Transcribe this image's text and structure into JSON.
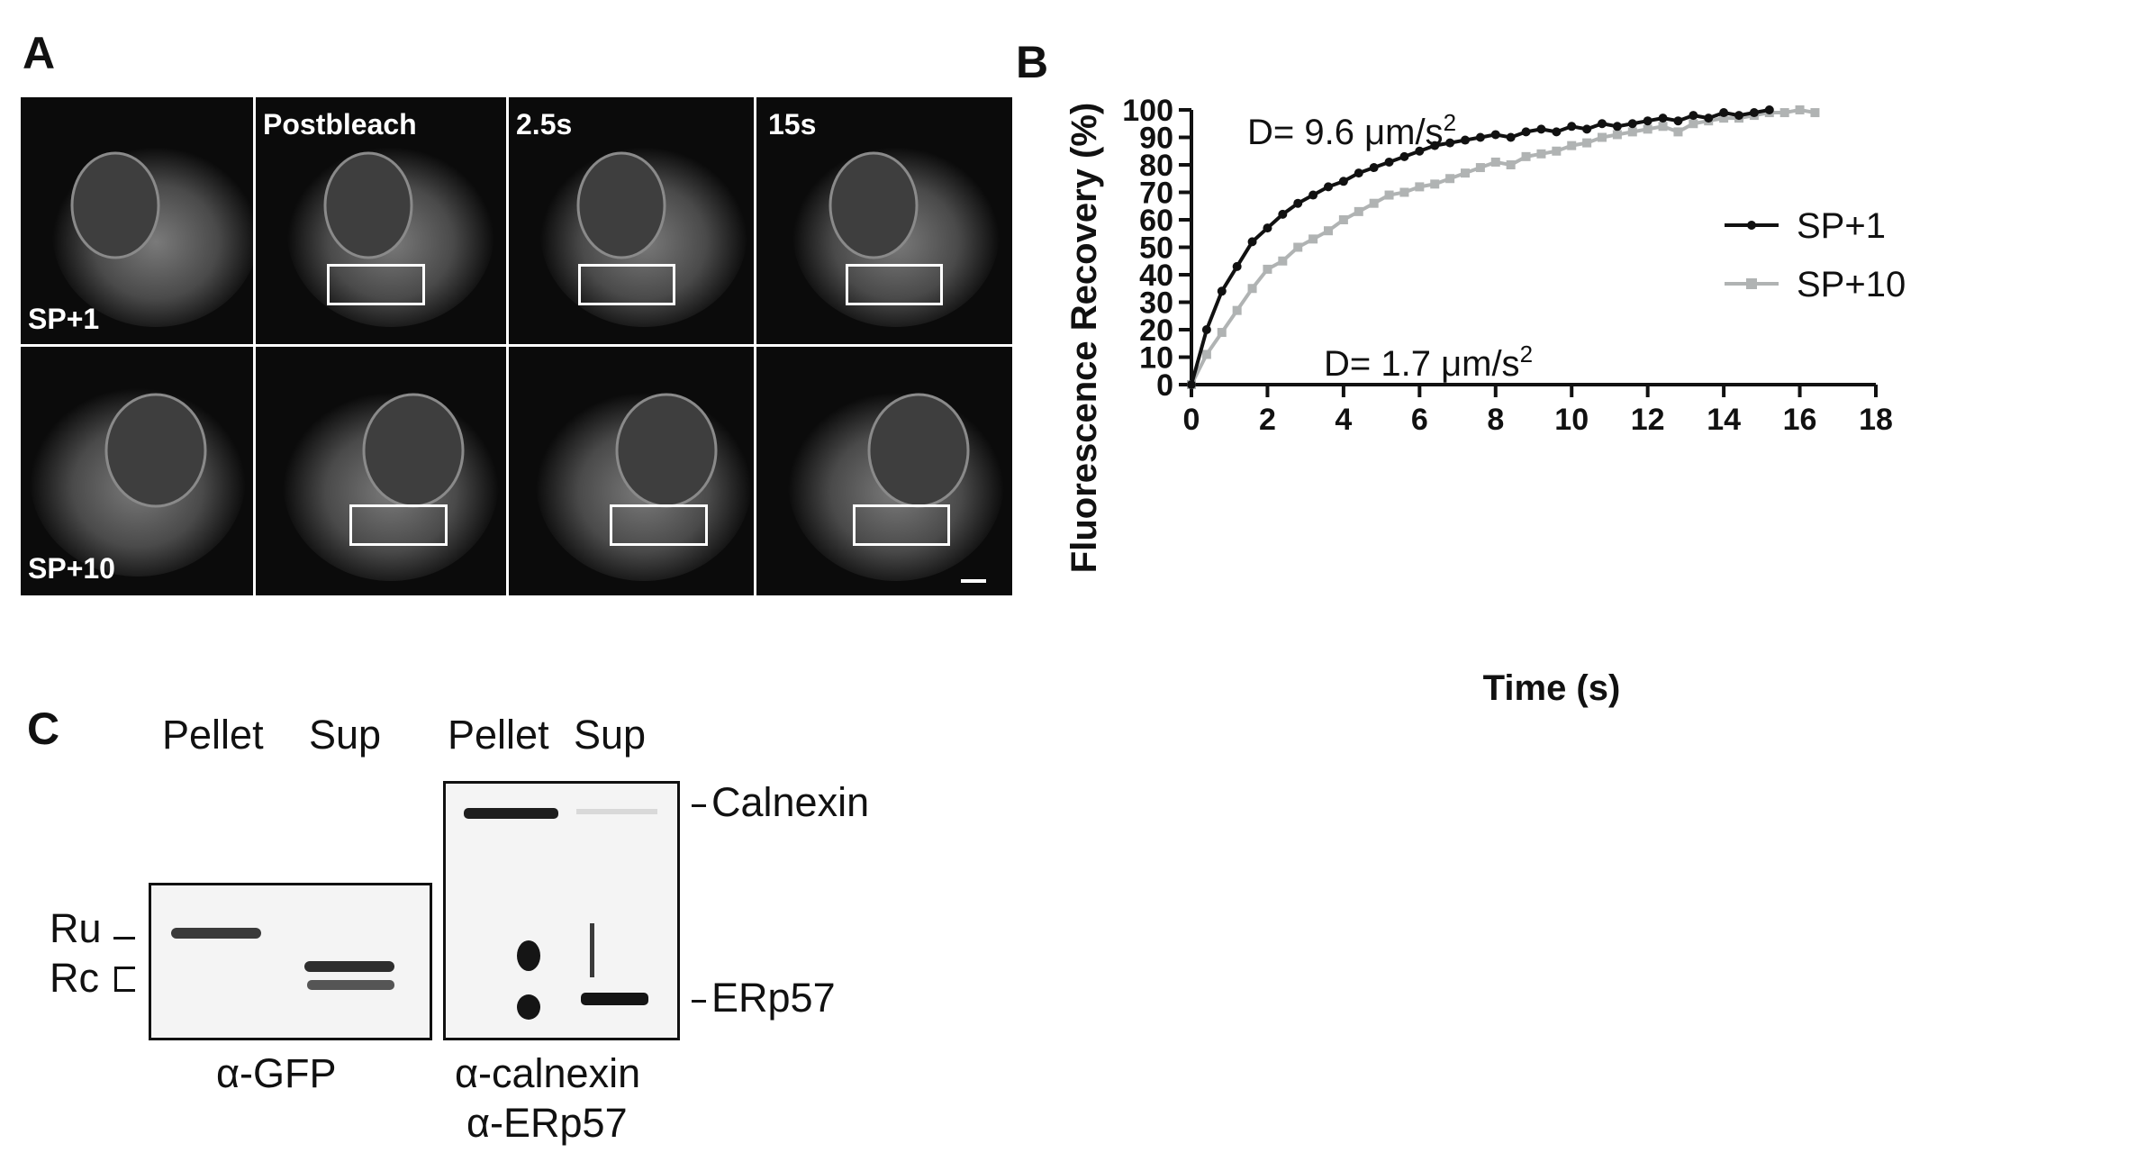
{
  "panels": {
    "a": "A",
    "b": "B",
    "c": "C"
  },
  "micrographs": {
    "col_labels": [
      "",
      "Postbleach",
      "2.5s",
      "15s"
    ],
    "row_labels": [
      "SP+1",
      "SP+10"
    ]
  },
  "chart_data": {
    "type": "line",
    "xlabel": "Time (s)",
    "ylabel": "Fluorescence Recovery (%)",
    "xlim": [
      0,
      18
    ],
    "ylim": [
      0,
      100
    ],
    "xticks": [
      0,
      2,
      4,
      6,
      8,
      10,
      12,
      14,
      16,
      18
    ],
    "yticks": [
      0,
      10,
      20,
      30,
      40,
      50,
      60,
      70,
      80,
      90,
      100
    ],
    "grid": false,
    "legend_position": "right",
    "annotations": [
      {
        "text_main": "D= 9.6 μm/s",
        "superscript": "2"
      },
      {
        "text_main": "D= 1.7 μm/s",
        "superscript": "2"
      }
    ],
    "series": [
      {
        "name": "SP+1",
        "color": "#111111",
        "marker": "circle",
        "x": [
          0,
          0.4,
          0.8,
          1.2,
          1.6,
          2.0,
          2.4,
          2.8,
          3.2,
          3.6,
          4.0,
          4.4,
          4.8,
          5.2,
          5.6,
          6.0,
          6.4,
          6.8,
          7.2,
          7.6,
          8.0,
          8.4,
          8.8,
          9.2,
          9.6,
          10.0,
          10.4,
          10.8,
          11.2,
          11.6,
          12.0,
          12.4,
          12.8,
          13.2,
          13.6,
          14.0,
          14.4,
          14.8,
          15.2
        ],
        "y": [
          0,
          20,
          34,
          43,
          52,
          57,
          62,
          66,
          69,
          72,
          74,
          77,
          79,
          81,
          83,
          85,
          87,
          88,
          89,
          90,
          91,
          90,
          92,
          93,
          92,
          94,
          93,
          95,
          94,
          95,
          96,
          97,
          96,
          98,
          97,
          99,
          98,
          99,
          100
        ]
      },
      {
        "name": "SP+10",
        "color": "#b0b3b3",
        "marker": "square",
        "x": [
          0,
          0.4,
          0.8,
          1.2,
          1.6,
          2.0,
          2.4,
          2.8,
          3.2,
          3.6,
          4.0,
          4.4,
          4.8,
          5.2,
          5.6,
          6.0,
          6.4,
          6.8,
          7.2,
          7.6,
          8.0,
          8.4,
          8.8,
          9.2,
          9.6,
          10.0,
          10.4,
          10.8,
          11.2,
          11.6,
          12.0,
          12.4,
          12.8,
          13.2,
          13.6,
          14.0,
          14.4,
          14.8,
          15.2,
          15.6,
          16.0,
          16.4
        ],
        "y": [
          0,
          11,
          19,
          27,
          35,
          42,
          45,
          50,
          53,
          56,
          60,
          63,
          66,
          69,
          70,
          72,
          73,
          75,
          77,
          79,
          81,
          80,
          83,
          84,
          85,
          87,
          88,
          90,
          91,
          92,
          93,
          94,
          92,
          95,
          96,
          97,
          97,
          98,
          99,
          99,
          100,
          99
        ]
      }
    ]
  },
  "blots": {
    "gfp": {
      "lane_labels": [
        "Pellet",
        "Sup"
      ],
      "antibody": "α-GFP",
      "marker_ru": "Ru",
      "marker_rc": "Rc"
    },
    "er": {
      "lane_labels": [
        "Pellet",
        "Sup"
      ],
      "antibody_line1": "α-calnexin",
      "antibody_line2": "α-ERp57",
      "band1": "Calnexin",
      "band2": "ERp57"
    }
  }
}
